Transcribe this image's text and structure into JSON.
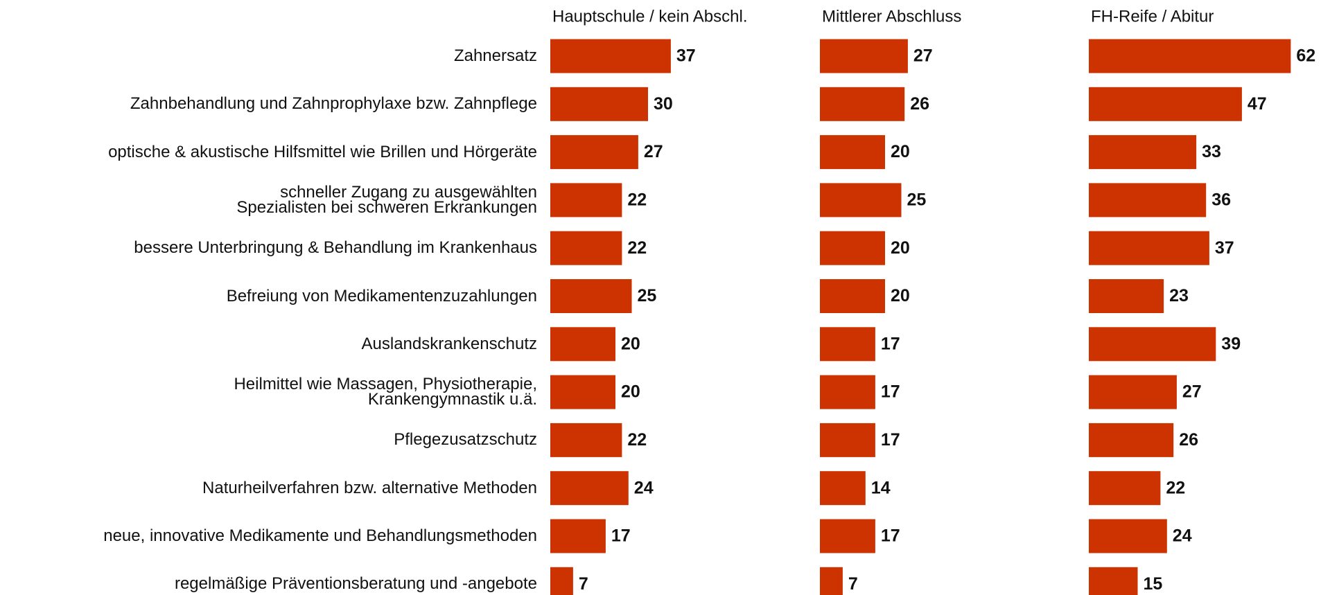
{
  "chart_data": {
    "type": "bar",
    "orientation": "horizontal",
    "categories": [
      "Zahnersatz",
      "Zahnbehandlung und Zahnprophylaxe bzw. Zahnpflege",
      "optische & akustische Hilfsmittel wie Brillen und Hörgeräte",
      "schneller Zugang zu ausgewählten\nSpezialisten bei schweren Erkrankungen",
      "bessere Unterbringung & Behandlung im Krankenhaus",
      "Befreiung von Medikamentenzuzahlungen",
      "Auslandskrankenschutz",
      "Heilmittel wie Massagen, Physiotherapie,\nKrankengymnastik u.ä.",
      "Pflegezusatzschutz",
      "Naturheilverfahren bzw. alternative Methoden",
      "neue, innovative Medikamente und Behandlungsmethoden",
      "regelmäßige Präventionsberatung und -angebote"
    ],
    "series": [
      {
        "name": "Hauptschule / kein Abschl.",
        "color": "#cc3300",
        "values": [
          37,
          30,
          27,
          22,
          22,
          25,
          20,
          20,
          22,
          24,
          17,
          7
        ]
      },
      {
        "name": "Mittlerer Abschluss",
        "color": "#cc3300",
        "values": [
          27,
          26,
          20,
          25,
          20,
          20,
          17,
          17,
          17,
          14,
          17,
          7
        ]
      },
      {
        "name": "FH-Reife / Abitur",
        "color": "#cc3300",
        "values": [
          62,
          47,
          33,
          36,
          37,
          23,
          39,
          27,
          26,
          22,
          24,
          15
        ]
      }
    ]
  }
}
